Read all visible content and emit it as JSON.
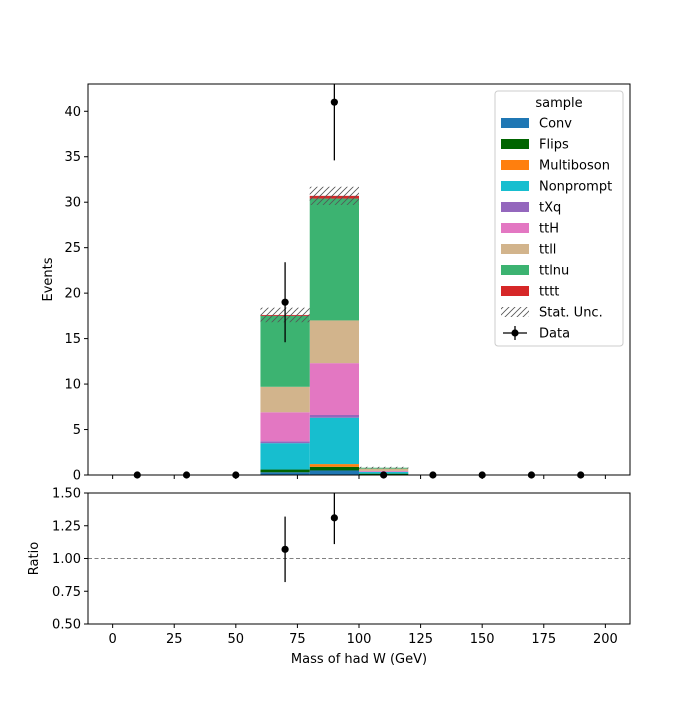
{
  "chart_data": [
    {
      "type": "bar",
      "stacked": true,
      "ylabel": "Events",
      "xlim": [
        -10,
        210
      ],
      "ylim": [
        0,
        43
      ],
      "yticks": [
        0,
        5,
        10,
        15,
        20,
        25,
        30,
        35,
        40
      ],
      "bins": [
        [
          60,
          80
        ],
        [
          80,
          100
        ],
        [
          100,
          120
        ]
      ],
      "series": [
        {
          "name": "Conv",
          "color": "#1f77b4",
          "values": [
            0.3,
            0.5,
            0.05
          ]
        },
        {
          "name": "Flips",
          "color": "#006400",
          "values": [
            0.3,
            0.4,
            0.1
          ]
        },
        {
          "name": "Multiboson",
          "color": "#ff7f0e",
          "values": [
            0.0,
            0.3,
            0.0
          ]
        },
        {
          "name": "Nonprompt",
          "color": "#17becf",
          "values": [
            2.9,
            5.1,
            0.2
          ]
        },
        {
          "name": "tXq",
          "color": "#9467bd",
          "values": [
            0.2,
            0.3,
            0.0
          ]
        },
        {
          "name": "ttH",
          "color": "#e377c2",
          "values": [
            3.2,
            5.7,
            0.1
          ]
        },
        {
          "name": "ttll",
          "color": "#d2b48c",
          "values": [
            2.8,
            4.7,
            0.25
          ]
        },
        {
          "name": "ttlnu",
          "color": "#3cb371",
          "values": [
            7.8,
            13.4,
            0.1
          ]
        },
        {
          "name": "tttt",
          "color": "#d62728",
          "values": [
            0.1,
            0.3,
            0.0
          ]
        }
      ],
      "stat_unc": {
        "name": "Stat. Unc.",
        "values": [
          0.8,
          1.0,
          0.1
        ]
      },
      "data": {
        "name": "Data",
        "x": [
          10,
          30,
          50,
          70,
          90,
          110,
          130,
          150,
          170,
          190
        ],
        "y": [
          0,
          0,
          0,
          19,
          41,
          0,
          0,
          0,
          0,
          0
        ],
        "yerr": [
          0,
          0,
          0,
          4.4,
          6.4,
          0,
          0,
          0,
          0,
          0
        ]
      },
      "legend": {
        "title": "sample",
        "placement": "top-right"
      }
    },
    {
      "type": "scatter",
      "xlabel": "Mass of had W (GeV)",
      "ylabel": "Ratio",
      "xlim": [
        -10,
        210
      ],
      "ylim": [
        0.5,
        1.5
      ],
      "xticks": [
        0,
        25,
        50,
        75,
        100,
        125,
        150,
        175,
        200
      ],
      "yticks": [
        "0.50",
        "0.75",
        "1.00",
        "1.25",
        "1.50"
      ],
      "reference_line": 1.0,
      "points": {
        "x": [
          70,
          90
        ],
        "y": [
          1.07,
          1.31
        ],
        "yerr": [
          0.25,
          0.2
        ]
      }
    }
  ]
}
